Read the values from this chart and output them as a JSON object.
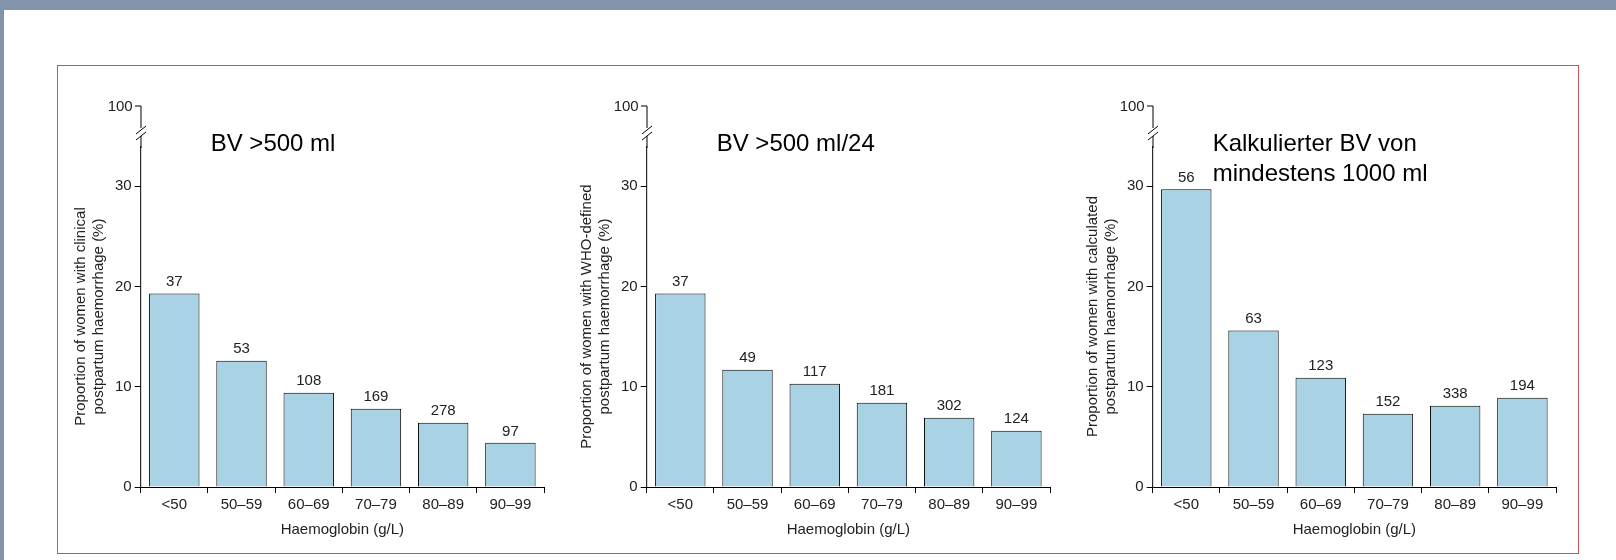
{
  "chart_data": [
    {
      "type": "bar",
      "title": "BV >500 ml",
      "xlabel": "Haemoglobin (g/L)",
      "ylabel": "Proportion of women with clinical postpartum haemorrhage (%)",
      "categories": [
        "<50",
        "50–59",
        "60–69",
        "70–79",
        "80–89",
        "90–99"
      ],
      "values": [
        19.3,
        12.6,
        9.4,
        7.8,
        6.4,
        4.4
      ],
      "color": "#a9d2e5",
      "ylim": [
        0,
        34
      ],
      "yticks": [
        0,
        10,
        20,
        30
      ],
      "grid": false,
      "legend": false,
      "annotations": [
        "100",
        {
          "text": "37",
          "x": "<50",
          "y": 19.3
        },
        {
          "text": "53",
          "x": "50–59",
          "y": 12.6
        },
        {
          "text": "108",
          "x": "60–69",
          "y": 9.4
        },
        {
          "text": "169",
          "x": "70–79",
          "y": 7.8
        },
        {
          "text": "278",
          "x": "80–89",
          "y": 6.4
        },
        {
          "text": "97",
          "x": "90–99",
          "y": 4.4
        }
      ]
    },
    {
      "type": "bar",
      "title": "BV >500 ml/24",
      "xlabel": "Haemoglobin (g/L)",
      "ylabel": "Proportion of women with WHO-defined postpartum haemorrhage (%)",
      "categories": [
        "<50",
        "50–59",
        "60–69",
        "70–79",
        "80–89",
        "90–99"
      ],
      "values": [
        19.3,
        11.7,
        10.3,
        8.4,
        6.9,
        5.6
      ],
      "color": "#a9d2e5",
      "ylim": [
        0,
        34
      ],
      "yticks": [
        0,
        10,
        20,
        30
      ],
      "grid": false,
      "legend": false,
      "annotations": [
        "100",
        {
          "text": "37",
          "x": "<50",
          "y": 19.3
        },
        {
          "text": "49",
          "x": "50–59",
          "y": 11.7
        },
        {
          "text": "117",
          "x": "60–69",
          "y": 10.3
        },
        {
          "text": "181",
          "x": "70–79",
          "y": 8.4
        },
        {
          "text": "302",
          "x": "80–89",
          "y": 6.9
        },
        {
          "text": "124",
          "x": "90–99",
          "y": 5.6
        }
      ]
    },
    {
      "type": "bar",
      "title": "Kalkulierter BV von mindestens 1000 ml",
      "xlabel": "Haemoglobin (g/L)",
      "ylabel": "Proportion of women with calculated postpartum haemorrhage (%)",
      "categories": [
        "<50",
        "50–59",
        "60–69",
        "70–79",
        "80–89",
        "90–99"
      ],
      "values": [
        29.7,
        15.6,
        10.9,
        7.3,
        8.1,
        8.9
      ],
      "color": "#a9d2e5",
      "ylim": [
        0,
        34
      ],
      "yticks": [
        0,
        10,
        20,
        30
      ],
      "grid": false,
      "legend": false,
      "annotations": [
        "100",
        {
          "text": "56",
          "x": "<50",
          "y": 29.7
        },
        {
          "text": "63",
          "x": "50–59",
          "y": 15.6
        },
        {
          "text": "123",
          "x": "60–69",
          "y": 10.9
        },
        {
          "text": "152",
          "x": "70–79",
          "y": 7.3
        },
        {
          "text": "338",
          "x": "80–89",
          "y": 8.1
        },
        {
          "text": "194",
          "x": "90–99",
          "y": 8.9
        }
      ]
    }
  ]
}
